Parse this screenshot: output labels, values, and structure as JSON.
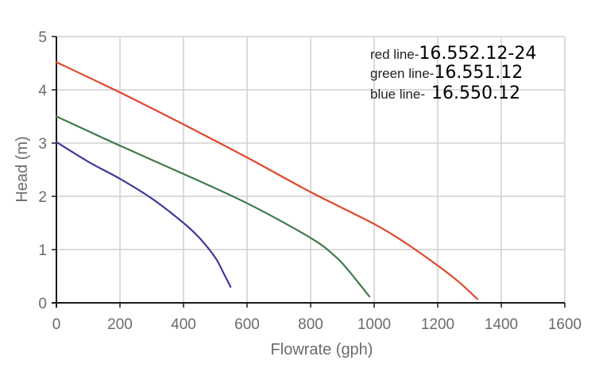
{
  "chart_data": {
    "type": "line",
    "xlabel": "Flowrate (gph)",
    "ylabel": "Head (m)",
    "xlim": [
      0,
      1600
    ],
    "ylim": [
      0,
      5
    ],
    "xticks": [
      0,
      200,
      400,
      600,
      800,
      1000,
      1200,
      1400,
      1600
    ],
    "yticks": [
      0,
      1,
      2,
      3,
      4,
      5
    ],
    "grid": true,
    "legend_position": "top-right",
    "series": [
      {
        "name": "red line-16.552.12-24",
        "prefix": "red line-",
        "code": "16.552.12-24",
        "color": "#e0472a",
        "x": [
          0,
          200,
          400,
          600,
          800,
          1000,
          1100,
          1200,
          1265,
          1325
        ],
        "y": [
          4.52,
          3.95,
          3.35,
          2.73,
          2.08,
          1.48,
          1.12,
          0.7,
          0.4,
          0.07
        ]
      },
      {
        "name": "green line-16.551.12",
        "prefix": "green line-",
        "code": "16.551.12",
        "color": "#3f7a4b",
        "x": [
          0,
          200,
          400,
          600,
          800,
          880,
          920,
          950,
          985
        ],
        "y": [
          3.5,
          2.95,
          2.42,
          1.87,
          1.22,
          0.86,
          0.6,
          0.38,
          0.12
        ]
      },
      {
        "name": "blue line-16.550.12",
        "prefix": "blue line-",
        "code": "16.550.12",
        "color": "#3c3a98",
        "x": [
          0,
          100,
          200,
          300,
          400,
          450,
          500,
          525,
          548
        ],
        "y": [
          3.02,
          2.65,
          2.33,
          1.96,
          1.5,
          1.22,
          0.85,
          0.57,
          0.3
        ]
      }
    ]
  }
}
